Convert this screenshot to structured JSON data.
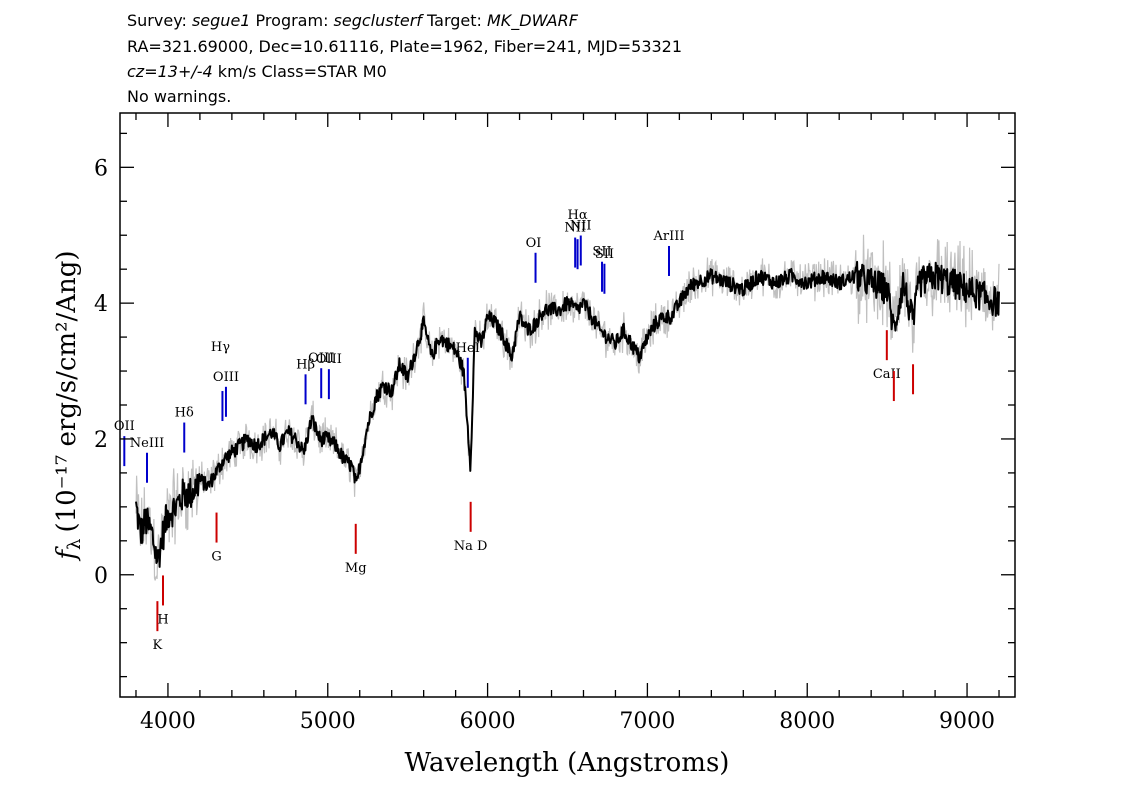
{
  "header": {
    "line1": {
      "survey_label": "Survey: ",
      "survey": "segue1",
      "program_label": " Program: ",
      "program": "segclusterf",
      "target_label": " Target: ",
      "target": "MK_DWARF"
    },
    "line2": "RA=321.69000, Dec=10.61116, Plate=1962, Fiber=241, MJD=53321",
    "line3": {
      "cz": "cz=13+/-4",
      "rest": " km/s Class=STAR M0"
    },
    "line4": "No warnings."
  },
  "chart_data": {
    "type": "line",
    "title": "",
    "xlabel": "Wavelength (Angstroms)",
    "ylabel_prefix": "f",
    "ylabel_subscript": "λ",
    "ylabel": "(10⁻¹⁷ erg/s/cm²/Ang)",
    "xlim": [
      3700,
      9300
    ],
    "ylim": [
      -1.8,
      6.8
    ],
    "x_ticks": [
      4000,
      5000,
      6000,
      7000,
      8000,
      9000
    ],
    "x_tick_labels": [
      "4000",
      "5000",
      "6000",
      "7000",
      "8000",
      "9000"
    ],
    "y_ticks": [
      0,
      2,
      4,
      6
    ],
    "y_tick_labels": [
      "0",
      "2",
      "4",
      "6"
    ],
    "grid": false,
    "colors": {
      "flux": "#000000",
      "noise": "#c0c0c0",
      "emission": "#0000cc",
      "absorption": "#cc0000"
    },
    "series": [
      {
        "x": [
          3800,
          3830,
          3860,
          3900,
          3935,
          3960,
          4000,
          4050,
          4100,
          4150,
          4200,
          4250,
          4300,
          4350,
          4400,
          4450,
          4500,
          4550,
          4600,
          4650,
          4700,
          4750,
          4800,
          4850,
          4900,
          4950,
          5000,
          5050,
          5100,
          5150,
          5180,
          5200,
          5250,
          5300,
          5350,
          5400,
          5450,
          5500,
          5550,
          5600,
          5650,
          5700,
          5750,
          5800,
          5850,
          5893,
          5920,
          5960,
          6000,
          6050,
          6100,
          6150,
          6200,
          6250,
          6300,
          6350,
          6400,
          6450,
          6500,
          6563,
          6600,
          6650,
          6700,
          6750,
          6800,
          6850,
          6900,
          6950,
          7000,
          7050,
          7100,
          7150,
          7200,
          7250,
          7300,
          7400,
          7500,
          7600,
          7700,
          7800,
          7900,
          8000,
          8100,
          8200,
          8300,
          8400,
          8500,
          8542,
          8600,
          8662,
          8700,
          8800,
          8900,
          9000,
          9100,
          9200
        ],
        "y": [
          1.0,
          0.6,
          0.8,
          0.6,
          0.2,
          0.5,
          0.9,
          1.0,
          1.2,
          1.2,
          1.4,
          1.3,
          1.5,
          1.7,
          1.8,
          1.9,
          2.0,
          1.9,
          2.0,
          2.1,
          1.9,
          2.1,
          2.0,
          1.8,
          2.3,
          2.0,
          2.0,
          1.9,
          1.7,
          1.6,
          1.3,
          1.6,
          2.2,
          2.6,
          2.8,
          2.7,
          3.1,
          2.9,
          3.3,
          3.7,
          3.2,
          3.5,
          3.4,
          3.3,
          3.0,
          1.6,
          3.6,
          3.4,
          3.8,
          3.7,
          3.5,
          3.2,
          3.8,
          3.6,
          3.7,
          3.9,
          3.9,
          3.9,
          4.0,
          3.9,
          4.0,
          3.8,
          3.6,
          3.5,
          3.4,
          3.6,
          3.4,
          3.2,
          3.5,
          3.7,
          3.8,
          3.8,
          4.0,
          4.2,
          4.3,
          4.4,
          4.3,
          4.2,
          4.4,
          4.3,
          4.4,
          4.3,
          4.4,
          4.3,
          4.4,
          4.3,
          4.2,
          3.6,
          4.3,
          3.7,
          4.3,
          4.4,
          4.3,
          4.2,
          4.1,
          4.0
        ]
      }
    ],
    "emission_lines": [
      {
        "label": "OII",
        "x": 3727
      },
      {
        "label": "NeIII",
        "x": 3869
      },
      {
        "label": "Hδ",
        "x": 4102
      },
      {
        "label": "Hγ",
        "x": 4341
      },
      {
        "label": "OIII",
        "x": 4363
      },
      {
        "label": "Hβ",
        "x": 4861
      },
      {
        "label": "OIII",
        "x": 4959
      },
      {
        "label": "OIII",
        "x": 5007
      },
      {
        "label": "HeI",
        "x": 5876
      },
      {
        "label": "OI",
        "x": 6300
      },
      {
        "label": "NII",
        "x": 6548
      },
      {
        "label": "Hα",
        "x": 6563
      },
      {
        "label": "NII",
        "x": 6583
      },
      {
        "label": "SII",
        "x": 6716
      },
      {
        "label": "SII",
        "x": 6731
      },
      {
        "label": "ArIII",
        "x": 7135
      }
    ],
    "absorption_lines": [
      {
        "label": "K",
        "x": 3934
      },
      {
        "label": "H",
        "x": 3969
      },
      {
        "label": "G",
        "x": 4304
      },
      {
        "label": "Mg",
        "x": 5175
      },
      {
        "label": "Na D",
        "x": 5894
      },
      {
        "label": "CaII",
        "x": 8498
      },
      {
        "label": "",
        "x": 8542
      },
      {
        "label": "",
        "x": 8662
      }
    ]
  }
}
